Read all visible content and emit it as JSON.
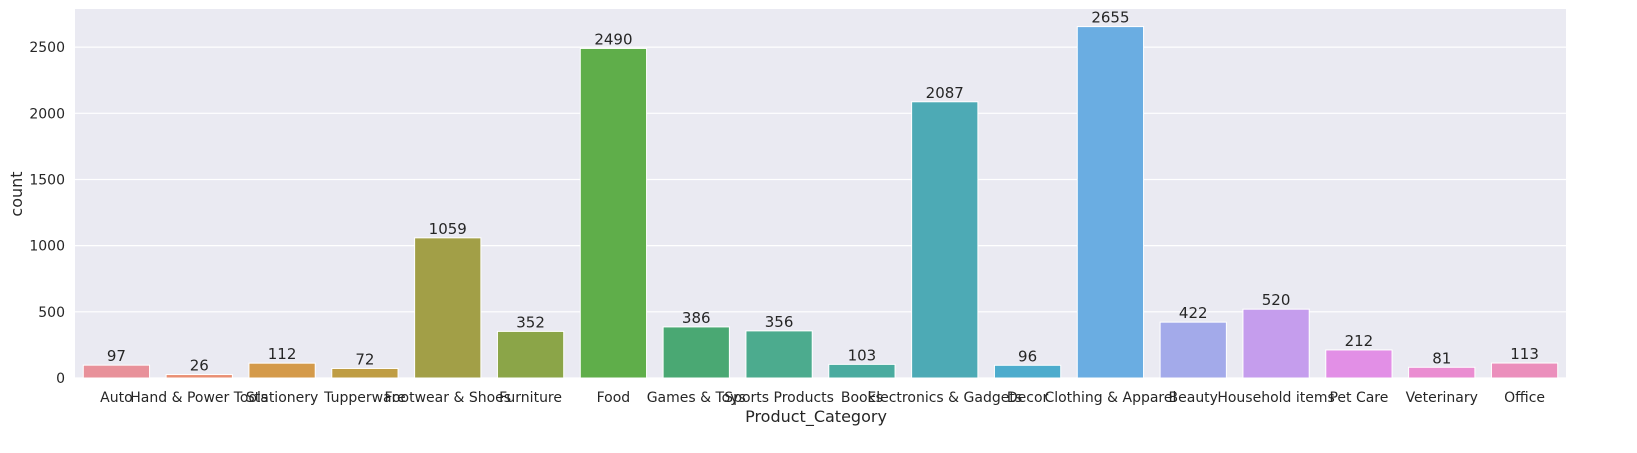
{
  "chart_data": {
    "type": "bar",
    "title": "",
    "xlabel": "Product_Category",
    "ylabel": "count",
    "categories": [
      "Auto",
      "Hand & Power Tools",
      "Stationery",
      "Tupperware",
      "Footwear & Shoes",
      "Furniture",
      "Food",
      "Games & Toys",
      "Sports Products",
      "Books",
      "Electronics & Gadgets",
      "Decor",
      "Clothing & Apparel",
      "Beauty",
      "Household items",
      "Pet Care",
      "Veterinary",
      "Office"
    ],
    "values": [
      97,
      26,
      112,
      72,
      1059,
      352,
      2490,
      386,
      356,
      103,
      2087,
      96,
      2655,
      422,
      520,
      212,
      81,
      113
    ],
    "colors": [
      "#e8919a",
      "#e98e72",
      "#d49a4a",
      "#bf9d44",
      "#a29f47",
      "#8ba548",
      "#5fae4a",
      "#4aa873",
      "#4cab8e",
      "#4aab9f",
      "#4daab5",
      "#4daccd",
      "#6aade2",
      "#a3aaea",
      "#c59ded",
      "#e28fe6",
      "#ea8dd1",
      "#eb8fbc"
    ],
    "yticks": [
      0,
      500,
      1000,
      1500,
      2000,
      2500
    ],
    "ylim": [
      0,
      2788
    ],
    "grid": true,
    "legend": "none",
    "background": "#eaeaf2",
    "gridcolor": "#ffffff"
  }
}
